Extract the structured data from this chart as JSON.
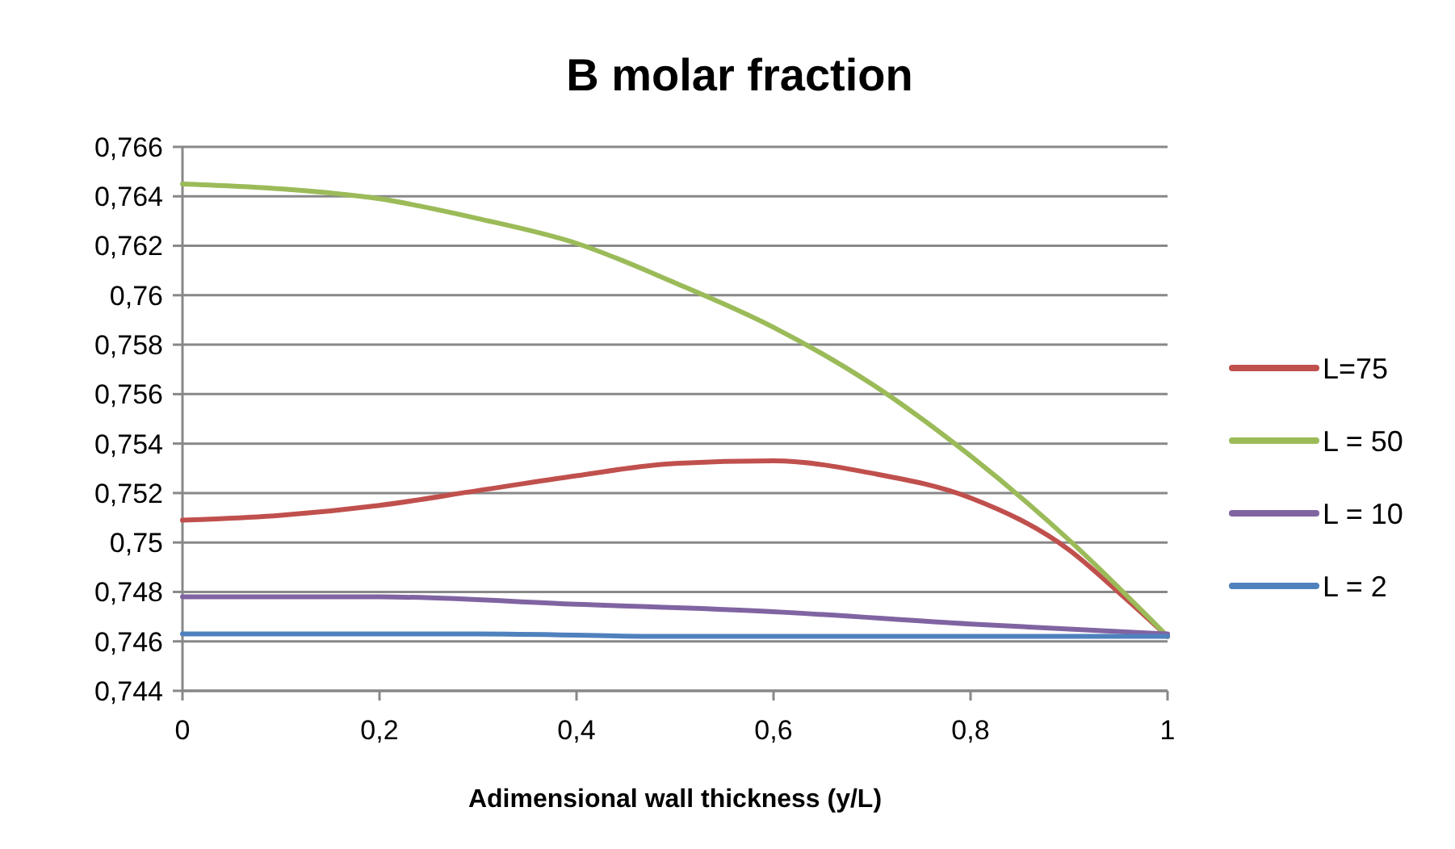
{
  "chart_data": {
    "type": "line",
    "title": "B molar fraction",
    "xlabel": "Adimensional wall thickness (y/L)",
    "xlim": [
      0,
      1
    ],
    "xticks": [
      {
        "value": 0,
        "label": "0"
      },
      {
        "value": 0.2,
        "label": "0,2"
      },
      {
        "value": 0.4,
        "label": "0,4"
      },
      {
        "value": 0.6,
        "label": "0,6"
      },
      {
        "value": 0.8,
        "label": "0,8"
      },
      {
        "value": 1,
        "label": "1"
      }
    ],
    "ylim": [
      0.744,
      0.766
    ],
    "yticks": [
      {
        "value": 0.744,
        "label": "0,744"
      },
      {
        "value": 0.746,
        "label": "0,746"
      },
      {
        "value": 0.748,
        "label": "0,748"
      },
      {
        "value": 0.75,
        "label": "0,75"
      },
      {
        "value": 0.752,
        "label": "0,752"
      },
      {
        "value": 0.754,
        "label": "0,754"
      },
      {
        "value": 0.756,
        "label": "0,756"
      },
      {
        "value": 0.758,
        "label": "0,758"
      },
      {
        "value": 0.76,
        "label": "0,76"
      },
      {
        "value": 0.762,
        "label": "0,762"
      },
      {
        "value": 0.764,
        "label": "0,764"
      },
      {
        "value": 0.766,
        "label": "0,766"
      }
    ],
    "grid": "y",
    "legend": "right",
    "series": [
      {
        "name": "L=75",
        "color": "#c0504d",
        "x": [
          0,
          0.1,
          0.2,
          0.3,
          0.4,
          0.5,
          0.6,
          0.7,
          0.8,
          0.9,
          0.95,
          1
        ],
        "values": [
          0.7509,
          0.7511,
          0.7515,
          0.7521,
          0.7527,
          0.7532,
          0.7533,
          0.7528,
          0.7518,
          0.7497,
          0.748,
          0.7462
        ]
      },
      {
        "name": "L = 50",
        "color": "#9bbb59",
        "x": [
          0,
          0.1,
          0.2,
          0.3,
          0.4,
          0.5,
          0.6,
          0.7,
          0.8,
          0.9,
          1
        ],
        "values": [
          0.7645,
          0.7643,
          0.7639,
          0.7631,
          0.7621,
          0.7605,
          0.7587,
          0.7564,
          0.7535,
          0.7501,
          0.7462
        ]
      },
      {
        "name": "L = 10",
        "color": "#8064a2",
        "x": [
          0,
          0.2,
          0.4,
          0.6,
          0.8,
          1
        ],
        "values": [
          0.7478,
          0.7478,
          0.7475,
          0.7472,
          0.7467,
          0.7463
        ]
      },
      {
        "name": "L = 2",
        "color": "#4f81bd",
        "x": [
          0,
          0.3,
          0.5,
          1
        ],
        "values": [
          0.7463,
          0.7463,
          0.7462,
          0.7462
        ]
      }
    ]
  }
}
